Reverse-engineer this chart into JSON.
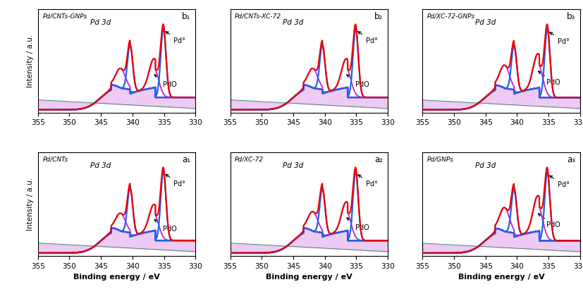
{
  "panels": [
    {
      "label": "b₁",
      "title": "Pd/CNTs-GNPs",
      "pd0_c": 335.1,
      "pdo_c": 336.6,
      "pd0_amp": 1.0,
      "pdo_amp": 0.42,
      "row": 0,
      "col": 0
    },
    {
      "label": "b₂",
      "title": "Pd/CNTs-XC-72",
      "pd0_c": 335.1,
      "pdo_c": 336.6,
      "pd0_amp": 1.0,
      "pdo_amp": 0.42,
      "row": 0,
      "col": 1
    },
    {
      "label": "b₃",
      "title": "Pd/XC-72-GNPs",
      "pd0_c": 335.2,
      "pdo_c": 336.7,
      "pd0_amp": 1.0,
      "pdo_amp": 0.5,
      "row": 0,
      "col": 2
    },
    {
      "label": "a₁",
      "title": "Pd/CNTs",
      "pd0_c": 335.1,
      "pdo_c": 336.6,
      "pd0_amp": 1.0,
      "pdo_amp": 0.38,
      "row": 1,
      "col": 0
    },
    {
      "label": "a₂",
      "title": "Pd/XC-72",
      "pd0_c": 335.1,
      "pdo_c": 336.6,
      "pd0_amp": 1.0,
      "pdo_amp": 0.42,
      "row": 1,
      "col": 1
    },
    {
      "label": "a₃",
      "title": "Pd/GNPs",
      "pd0_c": 335.2,
      "pdo_c": 336.7,
      "pd0_amp": 1.0,
      "pdo_amp": 0.52,
      "row": 1,
      "col": 2
    }
  ],
  "xmin": 330,
  "xmax": 355,
  "spin_split": 5.26,
  "sig_pd0": 0.42,
  "sig_pdo": 0.75,
  "sig_bg": 2.8,
  "color_envelope": "#ee0000",
  "color_blue": "#2060ee",
  "color_purple": "#bb33cc",
  "color_green": "#00bb44",
  "label_pd0": "Pd°",
  "label_pdo": "PdO",
  "xlabel": "Binding energy / eV",
  "ylabel": "Intensity / a.u."
}
